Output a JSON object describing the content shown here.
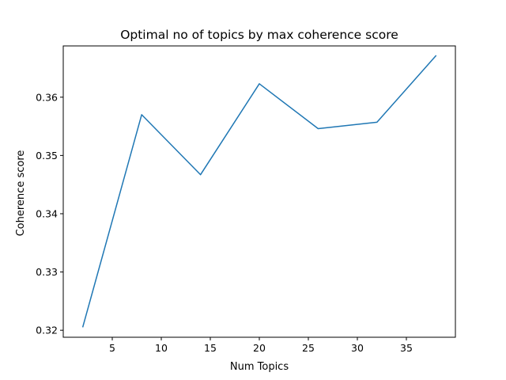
{
  "chart_data": {
    "type": "line",
    "title": "Optimal no of topics by max coherence score",
    "xlabel": "Num Topics",
    "ylabel": "Coherence score",
    "xlim": [
      -0.0,
      40.0
    ],
    "ylim": [
      0.3188,
      0.3688
    ],
    "xticks": [
      5,
      10,
      15,
      20,
      25,
      30,
      35
    ],
    "yticks": [
      0.32,
      0.33,
      0.34,
      0.35,
      0.36
    ],
    "ytick_labels": [
      "0.32",
      "0.33",
      "0.34",
      "0.35",
      "0.36"
    ],
    "grid": false,
    "series": [
      {
        "x": [
          2,
          8,
          14,
          20,
          26,
          32,
          38
        ],
        "y": [
          0.3206,
          0.357,
          0.3467,
          0.3623,
          0.3546,
          0.3557,
          0.3671
        ]
      }
    ],
    "colors": {
      "line": "#1f77b4",
      "axes": "#000000"
    }
  }
}
